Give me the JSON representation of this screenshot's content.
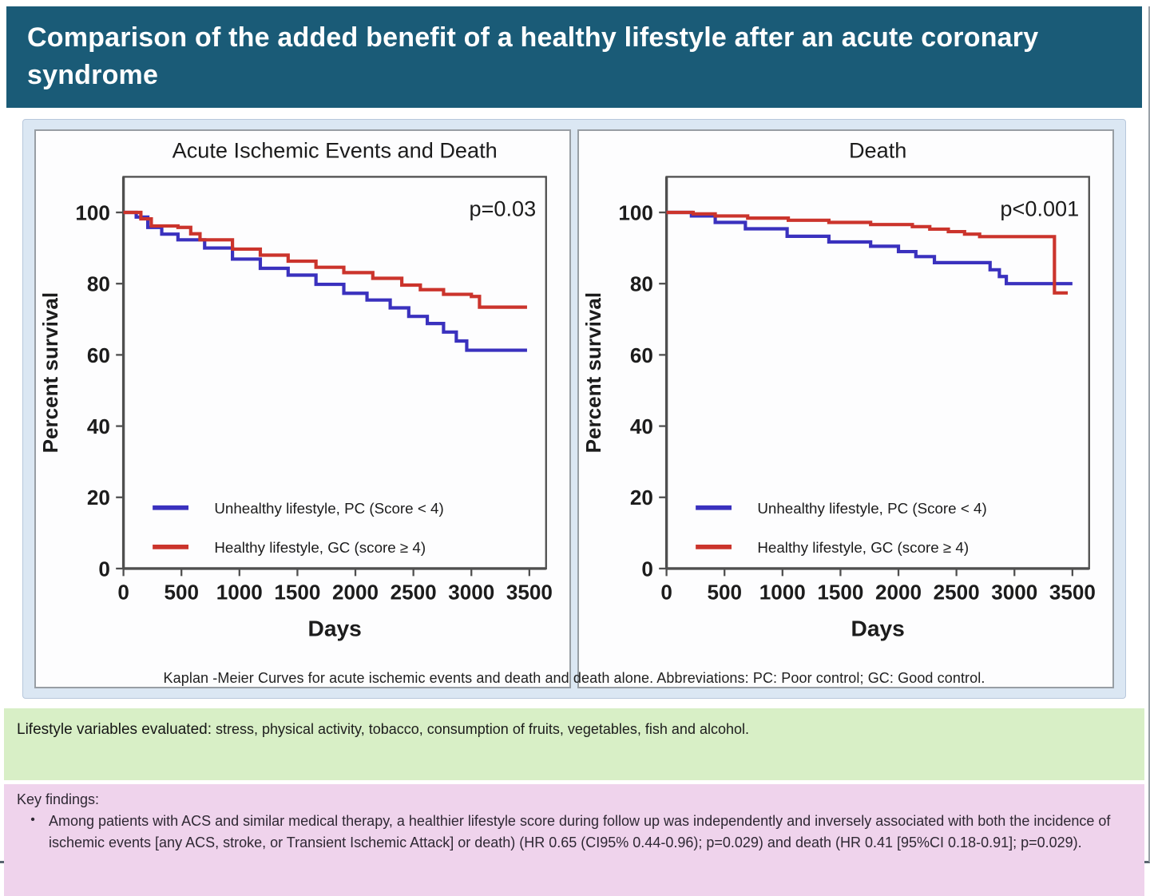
{
  "title": "Comparison of the added benefit of a healthy lifestyle after an acute coronary syndrome",
  "colors": {
    "title_bar": "#1a5b77",
    "figure_bg": "#dbe7f3",
    "panel_bg": "#fdfdfe",
    "panel_border": "#989ea4",
    "plot_border": "#4f4f4f",
    "unhealthy": "#3a31be",
    "healthy": "#cb342c",
    "green_band": "#d8efc6",
    "pink_band": "#efd3ec"
  },
  "caption": "Kaplan -Meier Curves for acute ischemic events and death and death alone. Abbreviations: PC: Poor control; GC: Good control.",
  "lifestyle_note": {
    "lead": "Lifestyle variables evaluated:",
    "text": "stress, physical activity, tobacco, consumption of fruits, vegetables, fish and alcohol."
  },
  "key_findings": {
    "heading": "Key findings:",
    "bullet_char": "•",
    "bullets": [
      "Among patients with ACS and similar medical therapy, a healthier lifestyle score during follow up was independently and inversely associated with both the incidence of ischemic events [any ACS, stroke, or Transient Ischemic Attack] or death) (HR 0.65 (CI95% 0.44-0.96); p=0.029) and death (HR 0.41 [95%CI 0.18-0.91]; p=0.029)."
    ]
  },
  "chart_data": [
    {
      "type": "line",
      "subtype": "kaplan-meier-step",
      "title": "Acute Ischemic Events and Death",
      "p_value": "p=0.03",
      "xlabel": "Days",
      "ylabel": "Percent survival",
      "xlim": [
        0,
        3644
      ],
      "ylim": [
        0,
        110
      ],
      "x_ticks": [
        0,
        500,
        1000,
        1500,
        2000,
        2500,
        3000,
        3500
      ],
      "y_ticks": [
        0,
        20,
        40,
        60,
        80,
        100
      ],
      "grid": false,
      "legend_position": "lower-left-inside",
      "legend": [
        {
          "label": "Unhealthy lifestyle, PC (Score < 4)",
          "color_key": "unhealthy"
        },
        {
          "label": "Healthy lifestyle, GC (score ≥ 4)",
          "color_key": "healthy"
        }
      ],
      "series": [
        {
          "name": "Unhealthy lifestyle, PC (Score < 4)",
          "color_key": "unhealthy",
          "points": [
            [
              0,
              100
            ],
            [
              110,
              98.7
            ],
            [
              210,
              95.8
            ],
            [
              330,
              93.9
            ],
            [
              470,
              92.3
            ],
            [
              700,
              90
            ],
            [
              940,
              86.9
            ],
            [
              1180,
              84.3
            ],
            [
              1420,
              82.4
            ],
            [
              1660,
              79.8
            ],
            [
              1900,
              77.3
            ],
            [
              2100,
              75.4
            ],
            [
              2300,
              73.2
            ],
            [
              2460,
              70.8
            ],
            [
              2620,
              68.8
            ],
            [
              2760,
              66.4
            ],
            [
              2870,
              63.9
            ],
            [
              2960,
              61.3
            ],
            [
              3480,
              61.3
            ]
          ]
        },
        {
          "name": "Healthy lifestyle, GC (score ≥ 4)",
          "color_key": "healthy",
          "points": [
            [
              0,
              100
            ],
            [
              150,
              98.2
            ],
            [
              240,
              96.2
            ],
            [
              470,
              95.8
            ],
            [
              580,
              94
            ],
            [
              660,
              92.3
            ],
            [
              940,
              89.7
            ],
            [
              1180,
              88
            ],
            [
              1420,
              86.3
            ],
            [
              1660,
              84.6
            ],
            [
              1900,
              83.1
            ],
            [
              2150,
              81.5
            ],
            [
              2400,
              79.6
            ],
            [
              2560,
              78.3
            ],
            [
              2760,
              77
            ],
            [
              3000,
              76.4
            ],
            [
              3070,
              73.4
            ],
            [
              3480,
              73.4
            ]
          ]
        }
      ]
    },
    {
      "type": "line",
      "subtype": "kaplan-meier-step",
      "title": "Death",
      "p_value": "p<0.001",
      "xlabel": "Days",
      "ylabel": "Percent survival",
      "xlim": [
        0,
        3644
      ],
      "ylim": [
        0,
        110
      ],
      "x_ticks": [
        0,
        500,
        1000,
        1500,
        2000,
        2500,
        3000,
        3500
      ],
      "y_ticks": [
        0,
        20,
        40,
        60,
        80,
        100
      ],
      "grid": false,
      "legend_position": "lower-left-inside",
      "legend": [
        {
          "label": "Unhealthy lifestyle, PC (Score < 4)",
          "color_key": "unhealthy"
        },
        {
          "label": "Healthy lifestyle, GC (score ≥ 4)",
          "color_key": "healthy"
        }
      ],
      "series": [
        {
          "name": "Unhealthy lifestyle, PC (Score < 4)",
          "color_key": "unhealthy",
          "points": [
            [
              0,
              100
            ],
            [
              215,
              99
            ],
            [
              420,
              97.2
            ],
            [
              680,
              95.4
            ],
            [
              1040,
              93.3
            ],
            [
              1400,
              91.7
            ],
            [
              1760,
              90.5
            ],
            [
              2000,
              89
            ],
            [
              2150,
              87.6
            ],
            [
              2310,
              85.9
            ],
            [
              2700,
              85.9
            ],
            [
              2790,
              83.9
            ],
            [
              2870,
              82
            ],
            [
              2930,
              80
            ],
            [
              3500,
              80
            ]
          ]
        },
        {
          "name": "Healthy lifestyle, GC (score ≥ 4)",
          "color_key": "healthy",
          "points": [
            [
              0,
              100
            ],
            [
              230,
              99.6
            ],
            [
              420,
              99
            ],
            [
              700,
              98.4
            ],
            [
              1050,
              97.8
            ],
            [
              1400,
              97.2
            ],
            [
              1760,
              96.6
            ],
            [
              2120,
              96
            ],
            [
              2270,
              95.3
            ],
            [
              2430,
              94.6
            ],
            [
              2570,
              93.9
            ],
            [
              2700,
              93.2
            ],
            [
              3330,
              93.2
            ],
            [
              3345,
              77.4
            ],
            [
              3460,
              77.4
            ]
          ]
        }
      ]
    }
  ]
}
